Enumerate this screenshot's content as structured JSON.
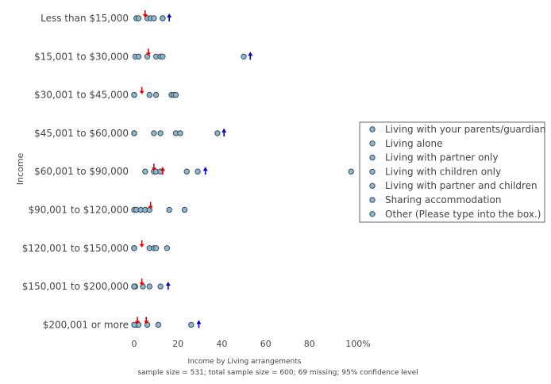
{
  "chart_data": {
    "type": "scatter",
    "xlabel": "Income by Living arrangements",
    "subtitle": "sample size = 531; total sample size = 600; 69 missing; 95% confidence level",
    "ylabel": "Income",
    "xlim": [
      0,
      100
    ],
    "x_ticks": [
      "0",
      "20",
      "40",
      "60",
      "80",
      "100%"
    ],
    "x_tick_values": [
      0,
      20,
      40,
      60,
      80,
      100
    ],
    "categories": [
      "Less than $15,000",
      "$15,001 to $30,000",
      "$30,001 to $45,000",
      "$45,001 to $60,000",
      "$60,001 to $90,000",
      "$90,001 to $120,000",
      "$120,001 to $150,000",
      "$150,001 to $200,000",
      "$200,001 or more"
    ],
    "legend_position": "right",
    "marker_color": "#8db7cf",
    "marker_stroke": "#3d4f5c",
    "series": [
      {
        "name": "Living with your parents/guardian",
        "values": [
          1,
          0.5,
          0,
          0,
          5,
          0,
          0,
          0,
          1
        ]
      },
      {
        "name": "Living alone",
        "values": [
          2,
          2,
          0,
          0,
          9,
          1,
          0,
          0,
          1
        ]
      },
      {
        "name": "Living with partner only",
        "values": [
          6,
          6,
          7,
          9,
          10,
          3,
          7,
          4,
          2
        ]
      },
      {
        "name": "Living with children only",
        "values": [
          7.5,
          10,
          10,
          12,
          12,
          5,
          9,
          7,
          6
        ]
      },
      {
        "name": "Living with partner and children",
        "values": [
          9,
          12,
          17,
          19,
          24,
          7,
          10,
          12,
          11
        ]
      },
      {
        "name": "Sharing accommodation",
        "values": [
          13,
          50,
          18,
          21,
          29,
          16,
          15,
          0.5,
          26
        ]
      },
      {
        "name": "Other (Please type into the box.)",
        "values": [
          13,
          13,
          19,
          38,
          99,
          23,
          0,
          0,
          0
        ]
      }
    ],
    "annotations": {
      "red_arrows": [
        {
          "category": "Less than $15,000",
          "x": 5,
          "direction": "down"
        },
        {
          "category": "$15,001 to $30,000",
          "x": 6.5,
          "direction": "down"
        },
        {
          "category": "$30,001 to $45,000",
          "x": 3.5,
          "direction": "down"
        },
        {
          "category": "$60,001 to $90,000",
          "x": 9,
          "direction": "down"
        },
        {
          "category": "$60,001 to $90,000",
          "x": 13,
          "direction": "up"
        },
        {
          "category": "$90,001 to $120,000",
          "x": 7.5,
          "direction": "down"
        },
        {
          "category": "$120,001 to $150,000",
          "x": 3.5,
          "direction": "down"
        },
        {
          "category": "$150,001 to $200,000",
          "x": 3.5,
          "direction": "down"
        },
        {
          "category": "$200,001 or more",
          "x": 1.5,
          "direction": "down"
        },
        {
          "category": "$200,001 or more",
          "x": 5.5,
          "direction": "down"
        }
      ],
      "blue_arrows": [
        {
          "category": "Less than $15,000",
          "x": 16,
          "direction": "up"
        },
        {
          "category": "$15,001 to $30,000",
          "x": 53,
          "direction": "up"
        },
        {
          "category": "$45,001 to $60,000",
          "x": 41,
          "direction": "up"
        },
        {
          "category": "$60,001 to $90,000",
          "x": 32.5,
          "direction": "up"
        },
        {
          "category": "$150,001 to $200,000",
          "x": 15.5,
          "direction": "up"
        },
        {
          "category": "$200,001 or more",
          "x": 29.5,
          "direction": "up"
        }
      ],
      "red_color": "#e00000",
      "blue_color": "#0000cc"
    }
  }
}
